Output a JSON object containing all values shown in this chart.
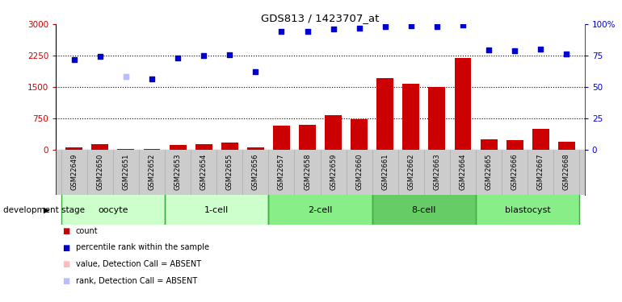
{
  "title": "GDS813 / 1423707_at",
  "samples": [
    "GSM22649",
    "GSM22650",
    "GSM22651",
    "GSM22652",
    "GSM22653",
    "GSM22654",
    "GSM22655",
    "GSM22656",
    "GSM22657",
    "GSM22658",
    "GSM22659",
    "GSM22660",
    "GSM22661",
    "GSM22662",
    "GSM22663",
    "GSM22664",
    "GSM22665",
    "GSM22666",
    "GSM22667",
    "GSM22668"
  ],
  "counts": [
    55,
    120,
    20,
    10,
    100,
    130,
    160,
    60,
    580,
    600,
    820,
    720,
    1700,
    1580,
    1500,
    2200,
    250,
    230,
    500,
    190
  ],
  "ranks_left": [
    2150,
    2220,
    1740,
    1680,
    2200,
    2240,
    2260,
    1870,
    2820,
    2820,
    2880,
    2900,
    2950,
    2960,
    2940,
    2980,
    2380,
    2360,
    2410,
    2280
  ],
  "absent_value_idx": 2,
  "absent_rank_idx": 2,
  "count_color": "#cc0000",
  "rank_color": "#0000cc",
  "absent_value_color": "#ffbbbb",
  "absent_rank_color": "#bbbbff",
  "ylim_left": [
    0,
    3000
  ],
  "ylim_right": [
    0,
    100
  ],
  "yticks_left": [
    0,
    750,
    1500,
    2250,
    3000
  ],
  "yticks_right": [
    0,
    25,
    50,
    75,
    100
  ],
  "ytick_labels_right": [
    "0",
    "25",
    "50",
    "75",
    "100%"
  ],
  "stage_groups": [
    {
      "label": "oocyte",
      "start": 0,
      "end": 4
    },
    {
      "label": "1-cell",
      "start": 4,
      "end": 8
    },
    {
      "label": "2-cell",
      "start": 8,
      "end": 12
    },
    {
      "label": "8-cell",
      "start": 12,
      "end": 16
    },
    {
      "label": "blastocyst",
      "start": 16,
      "end": 20
    }
  ],
  "stage_colors": [
    "#ccffcc",
    "#ccffcc",
    "#66dd66",
    "#66dd66",
    "#99ee99"
  ],
  "stage_border_color": "#44aa44",
  "sample_bg_color": "#cccccc",
  "xlabel_stage": "development stage",
  "legend_items": [
    {
      "label": "count",
      "color": "#cc0000"
    },
    {
      "label": "percentile rank within the sample",
      "color": "#0000cc"
    },
    {
      "label": "value, Detection Call = ABSENT",
      "color": "#ffbbbb"
    },
    {
      "label": "rank, Detection Call = ABSENT",
      "color": "#bbbbff"
    }
  ]
}
